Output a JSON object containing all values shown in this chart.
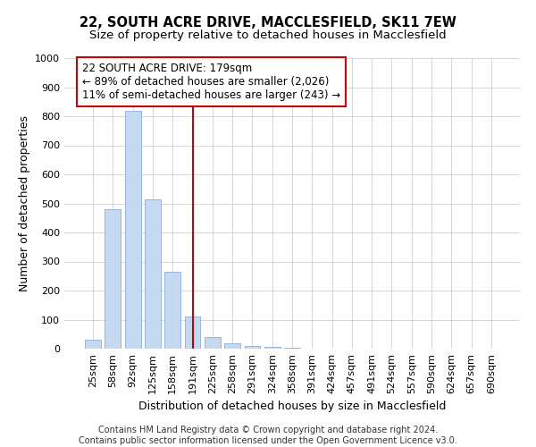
{
  "title": "22, SOUTH ACRE DRIVE, MACCLESFIELD, SK11 7EW",
  "subtitle": "Size of property relative to detached houses in Macclesfield",
  "xlabel": "Distribution of detached houses by size in Macclesfield",
  "ylabel": "Number of detached properties",
  "categories": [
    "25sqm",
    "58sqm",
    "92sqm",
    "125sqm",
    "158sqm",
    "191sqm",
    "225sqm",
    "258sqm",
    "291sqm",
    "324sqm",
    "358sqm",
    "391sqm",
    "424sqm",
    "457sqm",
    "491sqm",
    "524sqm",
    "557sqm",
    "590sqm",
    "624sqm",
    "657sqm",
    "690sqm"
  ],
  "values": [
    30,
    480,
    820,
    515,
    265,
    110,
    40,
    20,
    10,
    5,
    2,
    1,
    0,
    0,
    0,
    0,
    0,
    0,
    0,
    0,
    0
  ],
  "bar_color": "#c5d9f0",
  "bar_edge_color": "#8ab0d8",
  "reference_line_x": 5,
  "reference_line_color": "#cc0000",
  "annotation_text": "22 SOUTH ACRE DRIVE: 179sqm\n← 89% of detached houses are smaller (2,026)\n11% of semi-detached houses are larger (243) →",
  "annotation_box_color": "#cc0000",
  "ylim": [
    0,
    1000
  ],
  "yticks": [
    0,
    100,
    200,
    300,
    400,
    500,
    600,
    700,
    800,
    900,
    1000
  ],
  "footer_line1": "Contains HM Land Registry data © Crown copyright and database right 2024.",
  "footer_line2": "Contains public sector information licensed under the Open Government Licence v3.0.",
  "title_fontsize": 10.5,
  "subtitle_fontsize": 9.5,
  "axis_label_fontsize": 9,
  "tick_fontsize": 8,
  "annotation_fontsize": 8.5,
  "footer_fontsize": 7
}
